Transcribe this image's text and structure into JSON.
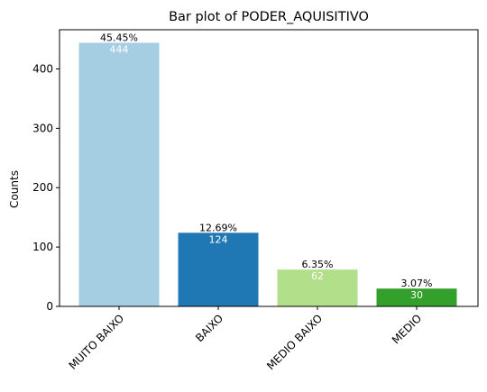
{
  "chart_data": {
    "type": "bar",
    "title": "Bar plot of PODER_AQUISITIVO",
    "xlabel": "",
    "ylabel": "Counts",
    "categories": [
      "MUITO BAIXO",
      "BAIXO",
      "MEDIO BAIXO",
      "MEDIO"
    ],
    "values": [
      444,
      124,
      62,
      30
    ],
    "percent_labels": [
      "45.45%",
      "12.69%",
      "6.35%",
      "3.07%"
    ],
    "count_labels": [
      "444",
      "124",
      "62",
      "30"
    ],
    "colors": [
      "#a6cee3",
      "#1f78b4",
      "#b2df8a",
      "#33a02c"
    ],
    "ylim": [
      0,
      466
    ],
    "yticks": [
      0,
      100,
      200,
      300,
      400
    ],
    "ytick_labels": [
      "0",
      "100",
      "200",
      "300",
      "400"
    ],
    "grid": false,
    "legend": "none"
  }
}
